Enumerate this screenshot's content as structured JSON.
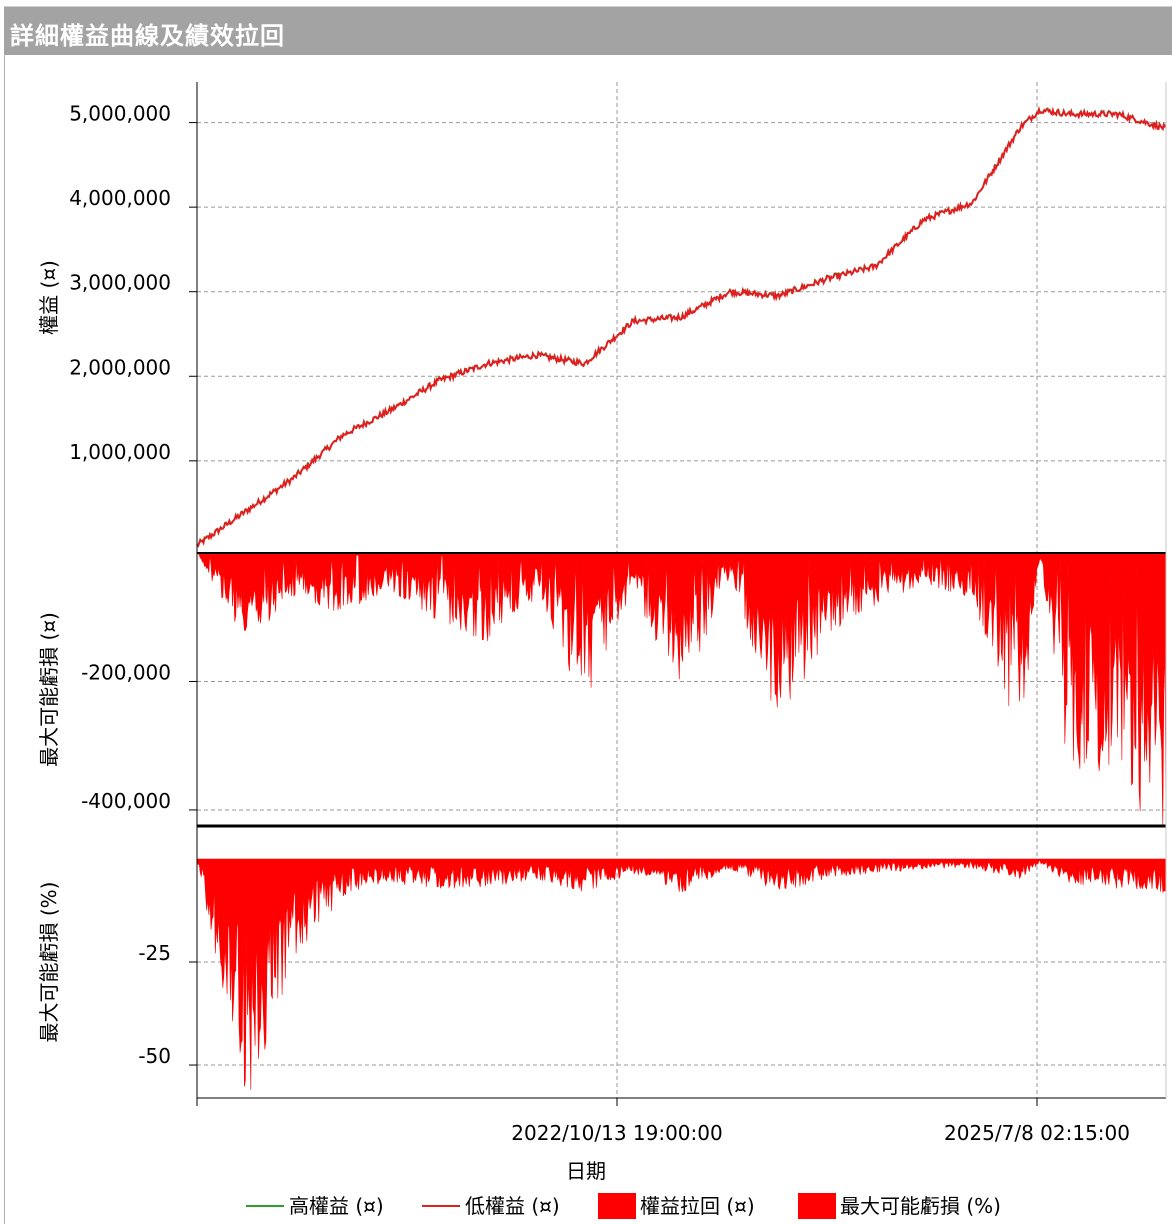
{
  "window": {
    "title": "詳細權益曲線及績效拉回"
  },
  "chart_data": {
    "type": "area",
    "xlabel": "日期",
    "x_ticks": [
      "2022/10/13 19:00:00",
      "2025/7/8 02:15:00"
    ],
    "colors": {
      "high_equity": "#2e9e2e",
      "low_equity": "#e02020",
      "drawdown": "#ff0000",
      "grid": "#9a9a9a"
    },
    "panels": [
      {
        "name": "equity",
        "ylabel": "權益 (¤)",
        "ylim": [
          -90000,
          5480000
        ],
        "y_ticks": [
          {
            "value": 1000000,
            "label": "1,000,000"
          },
          {
            "value": 2000000,
            "label": "2,000,000"
          },
          {
            "value": 3000000,
            "label": "3,000,000"
          },
          {
            "value": 4000000,
            "label": "4,000,000"
          },
          {
            "value": 5000000,
            "label": "5,000,000"
          }
        ]
      },
      {
        "name": "drawdown",
        "ylabel": "最大可能虧損 (¤)",
        "ylim": [
          -425000,
          0
        ],
        "y_ticks": [
          {
            "value": -200000,
            "label": "-200,000"
          },
          {
            "value": -400000,
            "label": "-400,000"
          }
        ]
      },
      {
        "name": "drawdown_pct",
        "ylabel": "最大可能虧損 (%)",
        "ylim": [
          -58,
          8
        ],
        "y_ticks": [
          {
            "value": -25,
            "label": "-25"
          },
          {
            "value": -50,
            "label": "-50"
          }
        ]
      }
    ],
    "x": [
      0,
      0.05,
      0.1,
      0.15,
      0.2,
      0.25,
      0.3,
      0.35,
      0.4,
      0.45,
      0.5,
      0.55,
      0.6,
      0.65,
      0.7,
      0.75,
      0.8,
      0.85,
      0.87,
      0.9,
      0.95,
      1.0
    ],
    "series": [
      {
        "name": "高權益 (¤)",
        "values": [
          0,
          400000,
          800000,
          1300000,
          1600000,
          1950000,
          2150000,
          2250000,
          2150000,
          2650000,
          2700000,
          3000000,
          2950000,
          3150000,
          3300000,
          3850000,
          4050000,
          4950000,
          5150000,
          5100000,
          5100000,
          4930000
        ]
      },
      {
        "name": "低權益 (¤)",
        "values": [
          0,
          400000,
          800000,
          1300000,
          1600000,
          1950000,
          2150000,
          2250000,
          2150000,
          2650000,
          2700000,
          3000000,
          2950000,
          3150000,
          3300000,
          3850000,
          4050000,
          4950000,
          5150000,
          5100000,
          5100000,
          4930000
        ]
      },
      {
        "name": "權益拉回 (¤)",
        "values": [
          0,
          -120000,
          -60000,
          -80000,
          -50000,
          -90000,
          -120000,
          -60000,
          -200000,
          -50000,
          -190000,
          -30000,
          -230000,
          -110000,
          -70000,
          -40000,
          -60000,
          -250000,
          -10000,
          -300000,
          -280000,
          -420000
        ]
      },
      {
        "name": "最大可能虧損 (%)",
        "values": [
          0,
          -52,
          -20,
          -8,
          -5,
          -6,
          -6,
          -4,
          -7,
          -3,
          -7,
          -2,
          -7,
          -4,
          -3,
          -2,
          -2,
          -4,
          -1,
          -5,
          -6,
          -7
        ]
      }
    ]
  },
  "legend": [
    {
      "label": "高權益 (¤)",
      "kind": "line",
      "color": "#2e9e2e"
    },
    {
      "label": "低權益 (¤)",
      "kind": "line",
      "color": "#e02020"
    },
    {
      "label": "權益拉回 (¤)",
      "kind": "box",
      "color": "#ff0000"
    },
    {
      "label": "最大可能虧損 (%)",
      "kind": "box",
      "color": "#ff0000"
    }
  ]
}
